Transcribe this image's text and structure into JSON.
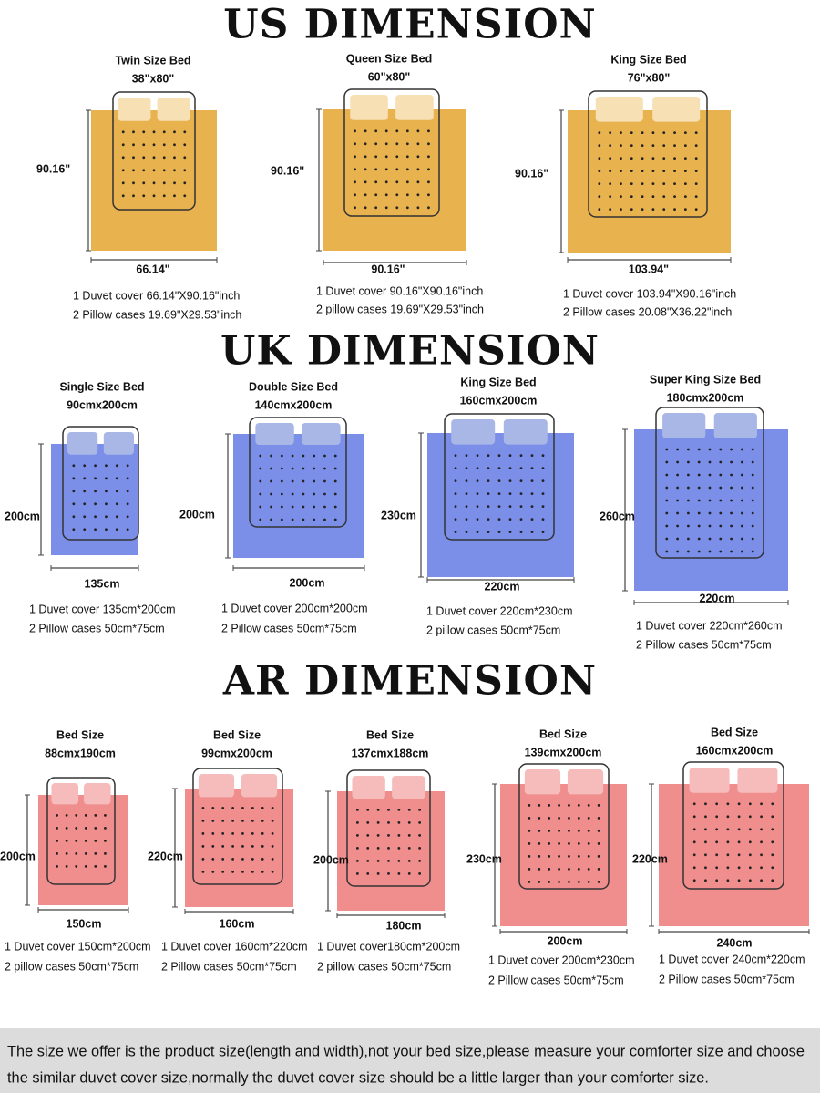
{
  "sections": [
    {
      "title": "US DIMENSION",
      "color": "#e8b24e",
      "pillow": "#f6e0b4",
      "beds": [
        {
          "name": "Twin Size Bed",
          "size": "38\"x80\"",
          "height": "90.16\"",
          "width": "66.14\"",
          "lines": [
            "1 Duvet cover 66.14\"X90.16\"inch",
            "2 Pillow cases 19.69\"X29.53\"inch"
          ]
        },
        {
          "name": "Queen Size Bed",
          "size": "60\"x80\"",
          "height": "90.16\"",
          "width": "90.16\"",
          "lines": [
            "1 Duvet cover 90.16\"X90.16\"inch",
            "2 pillow cases 19.69\"X29.53\"inch"
          ]
        },
        {
          "name": "King Size Bed",
          "size": "76\"x80\"",
          "height": "90.16\"",
          "width": "103.94\"",
          "lines": [
            "1 Duvet cover 103.94\"X90.16\"inch",
            "2 Pillow cases 20.08\"X36.22\"inch"
          ]
        }
      ]
    },
    {
      "title": "UK DIMENSION",
      "color": "#7b8ee8",
      "pillow": "#a9b7e6",
      "beds": [
        {
          "name": "Single Size Bed",
          "size": "90cmx200cm",
          "height": "200cm",
          "width": "135cm",
          "lines": [
            "1 Duvet cover 135cm*200cm",
            "2 Pillow cases 50cm*75cm"
          ]
        },
        {
          "name": "Double Size Bed",
          "size": "140cmx200cm",
          "height": "200cm",
          "width": "200cm",
          "lines": [
            "1 Duvet cover 200cm*200cm",
            "2 Pillow cases 50cm*75cm"
          ]
        },
        {
          "name": "King Size Bed",
          "size": "160cmx200cm",
          "height": "230cm",
          "width": "220cm",
          "lines": [
            "1 Duvet cover 220cm*230cm",
            "2 pillow cases 50cm*75cm"
          ]
        },
        {
          "name": "Super King Size Bed",
          "size": "180cmx200cm",
          "height": "260cm",
          "width": "220cm",
          "lines": [
            "1 Duvet cover 220cm*260cm",
            "2 Pillow cases 50cm*75cm"
          ]
        }
      ]
    },
    {
      "title": "AR DIMENSION",
      "color": "#f08e8e",
      "pillow": "#f6bcbc",
      "beds": [
        {
          "name": "Bed Size",
          "size": "88cmx190cm",
          "height": "200cm",
          "width": "150cm",
          "lines": [
            "1 Duvet cover 150cm*200cm",
            "2 pillow cases 50cm*75cm"
          ]
        },
        {
          "name": "Bed Size",
          "size": "99cmx200cm",
          "height": "220cm",
          "width": "160cm",
          "lines": [
            "1 Duvet cover 160cm*220cm",
            "2 Pillow cases 50cm*75cm"
          ]
        },
        {
          "name": "Bed Size",
          "size": "137cmx188cm",
          "height": "200cm",
          "width": "180cm",
          "lines": [
            "1 Duvet cover180cm*200cm",
            "2 pillow cases 50cm*75cm"
          ]
        },
        {
          "name": "Bed Size",
          "size": "139cmx200cm",
          "height": "230cm",
          "width": "200cm",
          "lines": [
            "1 Duvet cover 200cm*230cm",
            "2 Pillow cases 50cm*75cm"
          ]
        },
        {
          "name": "Bed Size",
          "size": "160cmx200cm",
          "height": "220cm",
          "width": "240cm",
          "lines": [
            "1 Duvet cover 240cm*220cm",
            "2 Pillow cases 50cm*75cm"
          ]
        }
      ]
    }
  ],
  "footer": {
    "lines": [
      "The size we offer is the product size(length and width),not your bed size,please measure your comforter size and choose",
      "the similar duvet cover size,normally the duvet cover size should be a little larger than your comforter size."
    ]
  }
}
